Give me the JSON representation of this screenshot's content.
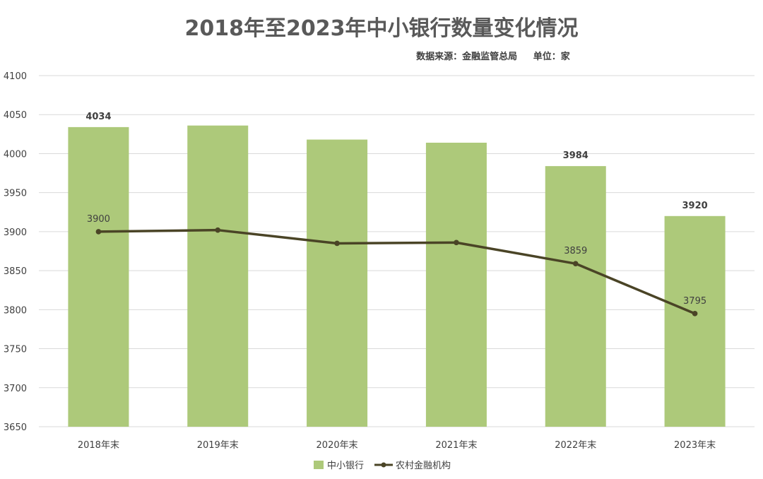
{
  "chart_data": {
    "type": "bar+line",
    "title": "2018年至2023年中小银行数量变化情况",
    "subtitle": "数据来源：金融监管总局     单位：家",
    "categories": [
      "2018年末",
      "2019年末",
      "2020年末",
      "2021年末",
      "2022年末",
      "2023年末"
    ],
    "ylim": [
      3650,
      4100
    ],
    "yticks": [
      3650,
      3700,
      3750,
      3800,
      3850,
      3900,
      3950,
      4000,
      4050,
      4100
    ],
    "grid": true,
    "legend_position": "bottom",
    "series": [
      {
        "name": "中小银行",
        "type": "bar",
        "color": "#adc97a",
        "values": [
          4034,
          4036,
          4018,
          4014,
          3984,
          3920
        ],
        "labels": [
          "4034",
          "",
          "",
          "",
          "3984",
          "3920"
        ]
      },
      {
        "name": "农村金融机构",
        "type": "line",
        "color": "#4a4426",
        "values": [
          3900,
          3902,
          3885,
          3886,
          3859,
          3795
        ],
        "labels": [
          "3900",
          "",
          "",
          "",
          "3859",
          "3795"
        ]
      }
    ]
  }
}
